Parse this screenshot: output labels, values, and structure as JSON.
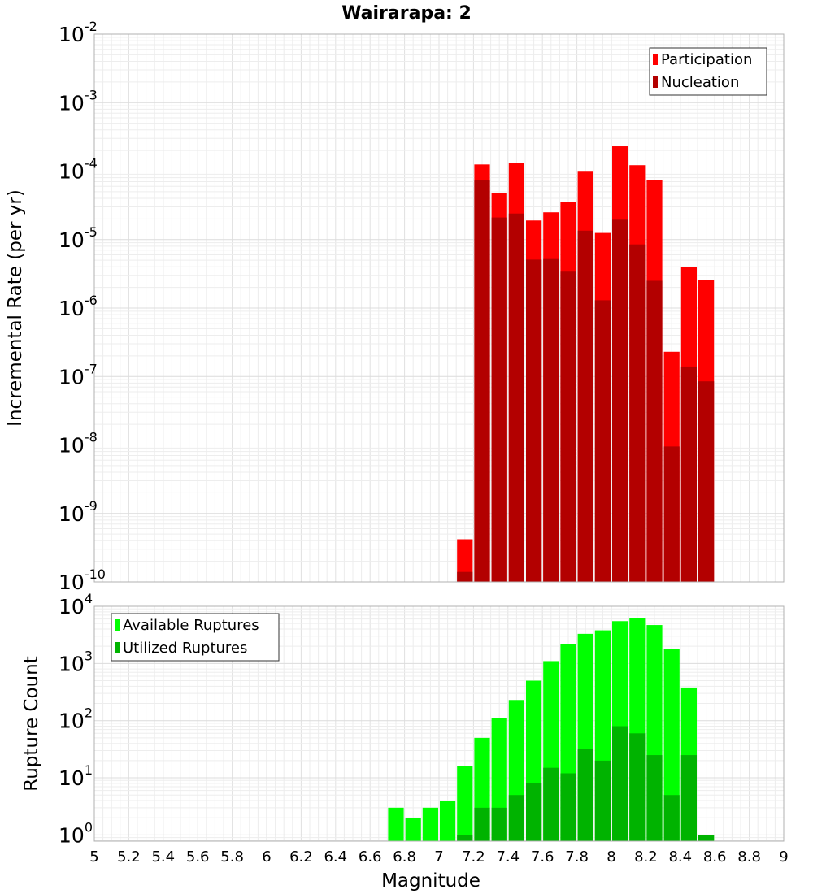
{
  "title": "Wairarapa: 2",
  "chart_data": [
    {
      "type": "bar",
      "panel": "top",
      "ylabel": "Incremental Rate (per yr)",
      "yscale": "log",
      "ylim": [
        1e-10,
        0.01
      ],
      "y_tick_exponents": [
        "-10",
        "-9",
        "-8",
        "-7",
        "-6",
        "-5",
        "-4",
        "-3",
        "-2"
      ],
      "xlim": [
        5,
        9
      ],
      "grid": true,
      "legend_position": "top-right",
      "bin_width": 0.1,
      "x": [
        7.15,
        7.25,
        7.35,
        7.45,
        7.55,
        7.65,
        7.75,
        7.85,
        7.95,
        8.05,
        8.15,
        8.25,
        8.35,
        8.45,
        8.55
      ],
      "series": [
        {
          "name": "Participation",
          "color": "#ff0000",
          "values": [
            4.2e-10,
            0.000125,
            4.8e-05,
            0.000132,
            1.9e-05,
            2.5e-05,
            3.5e-05,
            9.8e-05,
            1.25e-05,
            0.00023,
            0.000122,
            7.5e-05,
            2.3e-07,
            4e-06,
            2.6e-06
          ]
        },
        {
          "name": "Nucleation",
          "color": "#b30000",
          "values": [
            1.4e-10,
            7.3e-05,
            2.1e-05,
            2.4e-05,
            5.1e-06,
            5.2e-06,
            3.4e-06,
            1.35e-05,
            1.3e-06,
            1.95e-05,
            8.5e-06,
            2.5e-06,
            9.5e-09,
            1.4e-07,
            8.5e-08
          ]
        }
      ]
    },
    {
      "type": "bar",
      "panel": "bottom",
      "xlabel": "Magnitude",
      "ylabel": "Rupture Count",
      "yscale": "log",
      "ylim": [
        0.78,
        10000
      ],
      "y_tick_exponents": [
        "0",
        "1",
        "2",
        "3",
        "4"
      ],
      "xlim": [
        5,
        9
      ],
      "x_ticks": [
        "5",
        "5.2",
        "5.4",
        "5.6",
        "5.8",
        "6",
        "6.2",
        "6.4",
        "6.6",
        "6.8",
        "7",
        "7.2",
        "7.4",
        "7.6",
        "7.8",
        "8",
        "8.2",
        "8.4",
        "8.6",
        "8.8",
        "9"
      ],
      "grid": true,
      "legend_position": "top-left",
      "bin_width": 0.1,
      "x": [
        6.75,
        6.85,
        6.95,
        7.05,
        7.15,
        7.25,
        7.35,
        7.45,
        7.55,
        7.65,
        7.75,
        7.85,
        7.95,
        8.05,
        8.15,
        8.25,
        8.35,
        8.45,
        8.55
      ],
      "series": [
        {
          "name": "Available Ruptures",
          "color": "#00ff00",
          "values": [
            3,
            2,
            3,
            4,
            16,
            50,
            110,
            230,
            500,
            1100,
            2200,
            3300,
            3800,
            5500,
            6200,
            4700,
            1800,
            380,
            1
          ]
        },
        {
          "name": "Utilized Ruptures",
          "color": "#00b300",
          "values": [
            0,
            0,
            0,
            0,
            1,
            3,
            3,
            5,
            8,
            15,
            12,
            32,
            20,
            80,
            60,
            25,
            5,
            25,
            1
          ]
        }
      ]
    }
  ]
}
